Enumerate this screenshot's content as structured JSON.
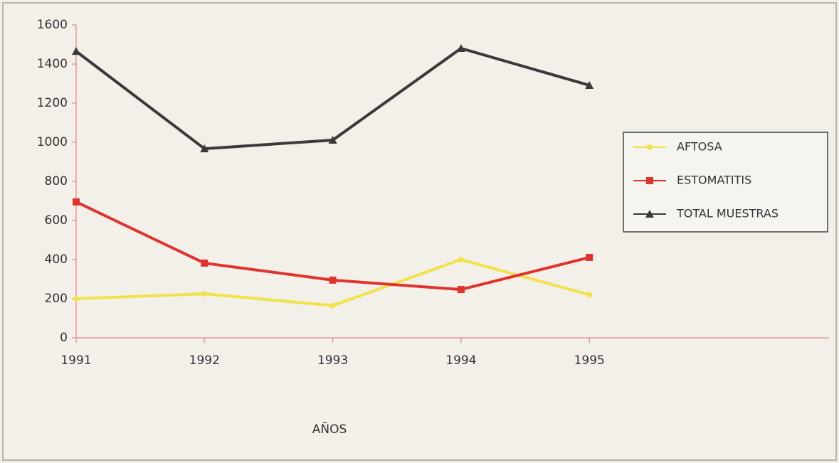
{
  "chart_data": {
    "type": "line",
    "categories": [
      "1991",
      "1992",
      "1993",
      "1994",
      "1995"
    ],
    "series": [
      {
        "name": "AFTOSA",
        "color": "#f2e24a",
        "marker": "circle",
        "values": [
          200,
          225,
          165,
          400,
          220
        ]
      },
      {
        "name": "ESTOMATITIS",
        "color": "#e0332e",
        "marker": "square",
        "values": [
          695,
          382,
          295,
          247,
          411
        ]
      },
      {
        "name": "TOTAL MUESTRAS",
        "color": "#3a3a3a",
        "marker": "triangle",
        "values": [
          1465,
          967,
          1011,
          1480,
          1291
        ]
      }
    ],
    "ylim": [
      0,
      1600
    ],
    "yticks": [
      0,
      200,
      400,
      600,
      800,
      1000,
      1200,
      1400,
      1600
    ],
    "x_label": "AÑOS",
    "grid": false,
    "legend": "right"
  }
}
